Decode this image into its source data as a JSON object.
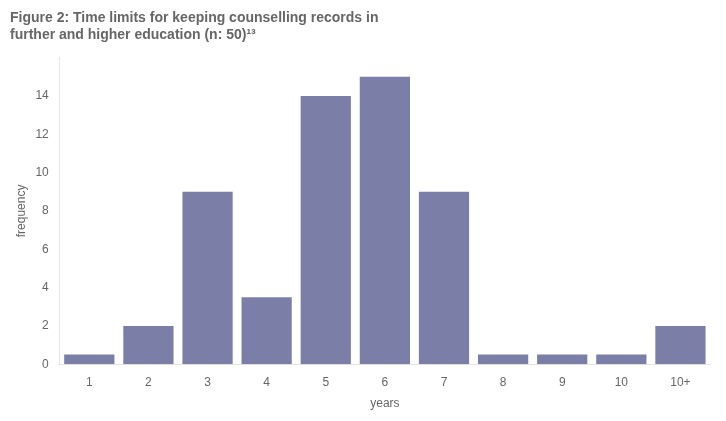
{
  "chart_data": {
    "type": "bar",
    "title": [
      "Figure 2: Time limits for keeping counselling records in",
      "further and higher education (n: 50)¹³"
    ],
    "categories": [
      "1",
      "2",
      "3",
      "4",
      "5",
      "6",
      "7",
      "8",
      "9",
      "10",
      "10+"
    ],
    "values": [
      0.5,
      2,
      9,
      3.5,
      14,
      15,
      9,
      0.5,
      0.5,
      0.5,
      2
    ],
    "color": "#7b7fa8",
    "xlabel": "years",
    "ylabel": "frequency",
    "ylim": [
      0,
      16
    ],
    "yticks": [
      0,
      2,
      4,
      6,
      8,
      10,
      12,
      14
    ],
    "grid": false
  }
}
